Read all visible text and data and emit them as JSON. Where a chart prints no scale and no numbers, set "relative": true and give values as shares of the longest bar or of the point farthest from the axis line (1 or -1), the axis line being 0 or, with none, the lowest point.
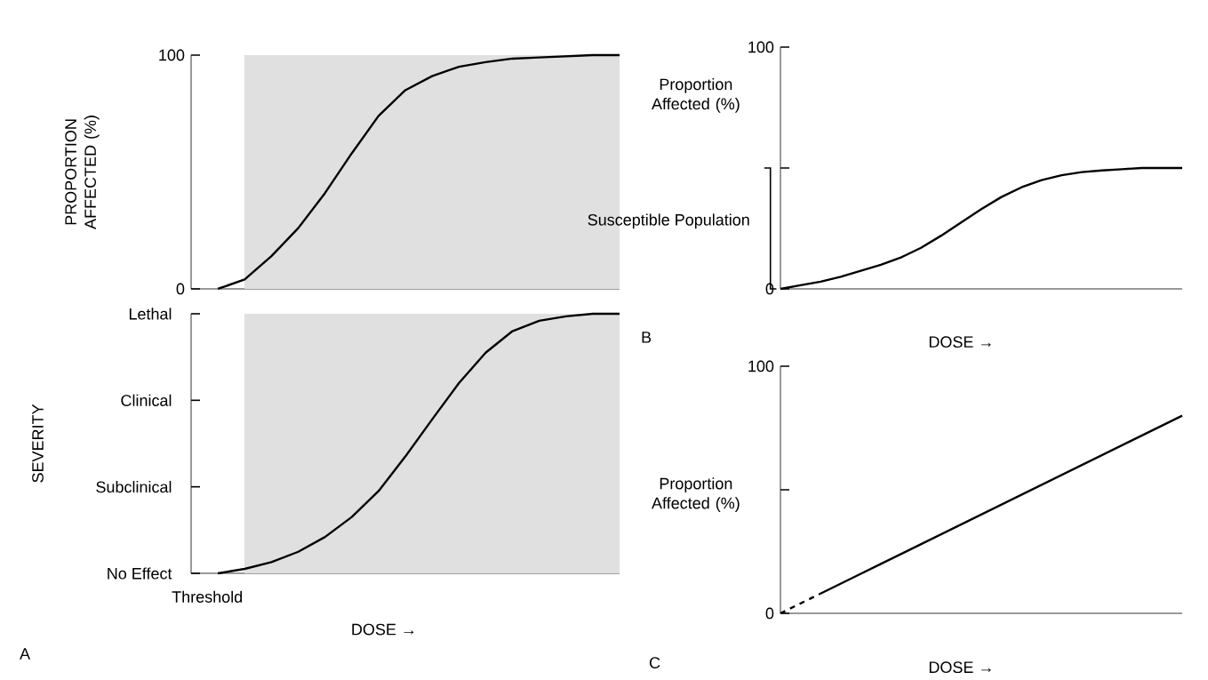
{
  "chart_data": [
    {
      "type": "line",
      "ylabel": "PROPORTION AFFECTED (%)",
      "ylim": [
        0,
        100
      ],
      "yticks": [
        0,
        100
      ],
      "tick_labels": "y",
      "categories": [
        null,
        null,
        null,
        null,
        null,
        null,
        null,
        null,
        null,
        null,
        null,
        null,
        null,
        null,
        null,
        null,
        null
      ],
      "series": [
        {
          "color": "#000000",
          "values": [
            null,
            0,
            4,
            14,
            26,
            41,
            58,
            74,
            85,
            91,
            95,
            97,
            98.5,
            99,
            99.5,
            100,
            100
          ]
        }
      ]
    },
    {
      "type": "line",
      "ylabel": "SEVERITY",
      "xlabel": "DOSE →",
      "relative": true,
      "categories": [
        null,
        null,
        null,
        null,
        null,
        null,
        null,
        null,
        null,
        null,
        null,
        null,
        null,
        null,
        null,
        null,
        null
      ],
      "annotations": [
        "A",
        "Threshold",
        "No Effect",
        "Subclinical",
        "Clinical",
        "Lethal"
      ],
      "series": [
        {
          "color": "#000000",
          "values": [
            null,
            0,
            0.017,
            0.043,
            0.083,
            0.14,
            0.217,
            0.317,
            0.45,
            0.593,
            0.733,
            0.85,
            0.933,
            0.973,
            0.99,
            1,
            1
          ]
        }
      ]
    },
    {
      "type": "line",
      "ylabel": "Proportion Affected (%)",
      "xlabel": "DOSE →",
      "ylim": [
        0,
        100
      ],
      "tick_labels": "y",
      "categories": [
        null,
        null,
        null,
        null,
        null,
        null,
        null,
        null,
        null,
        null,
        null,
        null,
        null,
        null,
        null,
        null,
        null,
        null,
        null,
        null,
        null
      ],
      "yticks": [
        0,
        {
          "value": 50,
          "label": null
        },
        100
      ],
      "annotations": [
        "Susceptible Population",
        "B"
      ],
      "series": [
        {
          "color": "#000000",
          "values": [
            0,
            1.5,
            3,
            5,
            7.5,
            10,
            13,
            17,
            22,
            27.5,
            33,
            38,
            42,
            45,
            47,
            48.3,
            49,
            49.5,
            50,
            50,
            50
          ]
        }
      ]
    },
    {
      "type": "line",
      "ylabel": "Proportion Affected (%)",
      "xlabel": "DOSE →",
      "ylim": [
        0,
        100
      ],
      "tick_labels": "y",
      "categories": [
        null,
        null,
        null,
        null,
        null,
        null,
        null,
        null,
        null,
        null,
        null,
        null,
        null,
        null,
        null,
        null,
        null,
        null,
        null,
        null,
        null
      ],
      "yticks": [
        0,
        {
          "value": 50,
          "label": null
        },
        100
      ],
      "annotations": [
        "C"
      ],
      "series": [
        {
          "color": "#000000",
          "line_style": "dashed",
          "values": [
            0,
            4,
            8,
            null,
            null,
            null,
            null,
            null,
            null,
            null,
            null,
            null,
            null,
            null,
            null,
            null,
            null,
            null,
            null,
            null,
            null
          ]
        },
        {
          "color": "#000000",
          "line_style": "solid",
          "values": [
            null,
            null,
            8,
            12,
            16,
            20,
            24,
            28,
            32,
            36,
            40,
            44,
            48,
            52,
            56,
            60,
            64,
            68,
            72,
            76,
            80
          ]
        }
      ]
    }
  ]
}
